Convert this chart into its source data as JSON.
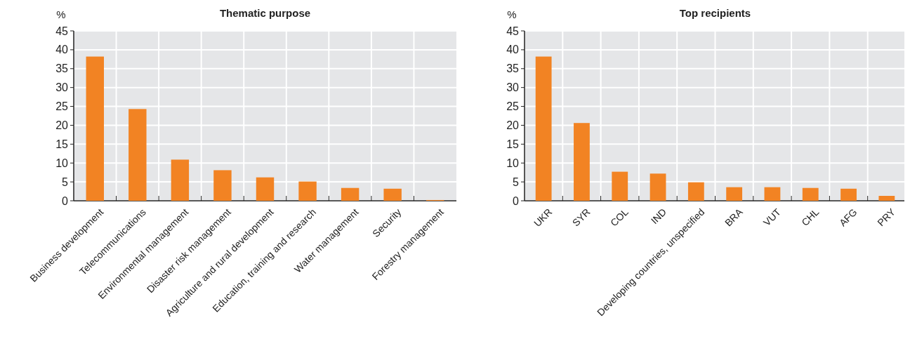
{
  "chart_data": [
    {
      "type": "bar",
      "title": "Thematic purpose",
      "ylabel": "%",
      "categories": [
        "Business development",
        "Telecommunications",
        "Environmental management",
        "Disaster risk management",
        "Agriculture and rural development",
        "Education, training and research",
        "Water management",
        "Security",
        "Forestry management"
      ],
      "values": [
        38.2,
        24.3,
        10.9,
        8.1,
        6.2,
        5.1,
        3.4,
        3.2,
        0.2
      ],
      "color": "#f28323",
      "ylim": [
        0,
        45
      ],
      "yticks": [
        0,
        5,
        10,
        15,
        20,
        25,
        30,
        35,
        40,
        45
      ],
      "grid": true
    },
    {
      "type": "bar",
      "title": "Top recipients",
      "ylabel": "%",
      "categories": [
        "UKR",
        "SYR",
        "COL",
        "IND",
        "Developing countries, unspecified",
        "BRA",
        "VUT",
        "CHL",
        "AFG",
        "PRY"
      ],
      "values": [
        38.2,
        20.6,
        7.7,
        7.2,
        4.9,
        3.6,
        3.6,
        3.4,
        3.2,
        1.3
      ],
      "color": "#f28323",
      "ylim": [
        0,
        45
      ],
      "yticks": [
        0,
        5,
        10,
        15,
        20,
        25,
        30,
        35,
        40,
        45
      ],
      "grid": true
    }
  ]
}
